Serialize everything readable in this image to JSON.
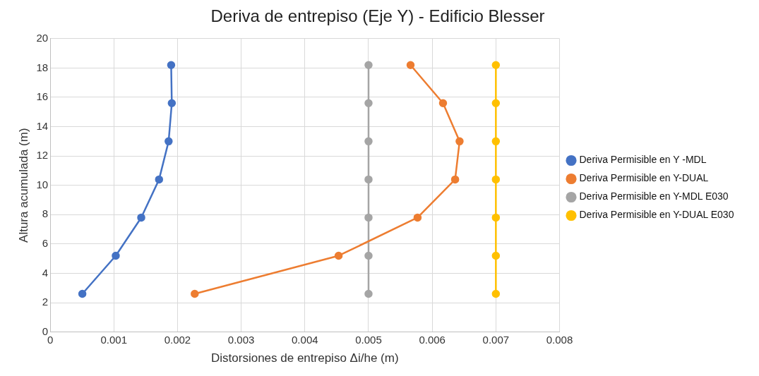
{
  "chart_data": {
    "type": "line",
    "title": "Deriva de entrepiso (Eje Y) - Edificio Blesser",
    "xlabel": "Distorsiones de entrepiso Δi/he (m)",
    "ylabel": "Altura acumulada (m)",
    "xlim": [
      0,
      0.008
    ],
    "xticks": [
      0,
      0.001,
      0.002,
      0.003,
      0.004,
      0.005,
      0.006,
      0.007,
      0.008
    ],
    "ylim": [
      0,
      20
    ],
    "yticks": [
      0,
      2,
      4,
      6,
      8,
      10,
      12,
      14,
      16,
      18,
      20
    ],
    "grid": true,
    "legend": "right",
    "marker": "circle",
    "line_style": "solid",
    "series": [
      {
        "name": "Deriva Permisible en Y -MDL",
        "color": "#4472c4",
        "x": [
          0.000505,
          0.00103,
          0.00143,
          0.00171,
          0.00186,
          0.00191,
          0.0019
        ],
        "values": [
          2.6,
          5.2,
          7.8,
          10.4,
          13.0,
          15.6,
          18.2
        ]
      },
      {
        "name": "Deriva Permisible en Y-DUAL",
        "color": "#ed7d31",
        "x": [
          0.00227,
          0.00453,
          0.00577,
          0.00636,
          0.00643,
          0.00617,
          0.00566
        ],
        "values": [
          2.6,
          5.2,
          7.8,
          10.4,
          13.0,
          15.6,
          18.2
        ]
      },
      {
        "name": "Deriva Permisible en Y-MDL E030",
        "color": "#a5a5a5",
        "x": [
          0.005,
          0.005,
          0.005,
          0.005,
          0.005,
          0.005,
          0.005
        ],
        "values": [
          2.6,
          5.2,
          7.8,
          10.4,
          13.0,
          15.6,
          18.2
        ]
      },
      {
        "name": "Deriva Permisible en Y-DUAL E030",
        "color": "#ffc000",
        "x": [
          0.007,
          0.007,
          0.007,
          0.007,
          0.007,
          0.007,
          0.007
        ],
        "values": [
          2.6,
          5.2,
          7.8,
          10.4,
          13.0,
          15.6,
          18.2
        ]
      }
    ]
  }
}
